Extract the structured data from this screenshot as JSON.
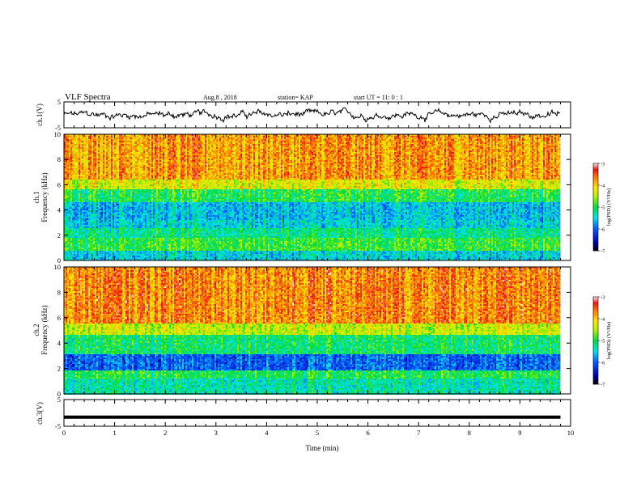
{
  "header": {
    "title": "VLF Spectra",
    "date": "Aug.8  , 2018",
    "station": "station= KAP",
    "start": "start  UT  =   11: 0  : 1"
  },
  "colorbar": {
    "label": "log(PSD) (V²/Hz)",
    "ticks": [
      {
        "value": -3,
        "label": "-3"
      },
      {
        "value": -4,
        "label": "-4"
      },
      {
        "value": -5,
        "label": "-5"
      },
      {
        "value": -6,
        "label": "-6"
      },
      {
        "value": -7,
        "label": "-7"
      }
    ]
  },
  "chart_data": [
    {
      "type": "line",
      "ylabel": "ch.1(V)",
      "ylim": [
        -5,
        5
      ],
      "xlim": [
        0,
        10
      ],
      "yticks": [
        {
          "value": 5,
          "label": "5"
        },
        {
          "value": -5,
          "label": "-5"
        }
      ],
      "description_values": {
        "baseline": 0,
        "typical_range": [
          -2,
          2
        ]
      }
    },
    {
      "type": "heatmap",
      "ylabel_channel": "ch.1",
      "ylabel": "Frequency  (kHz)",
      "ylim": [
        0,
        10
      ],
      "xlim": [
        0,
        9.8
      ],
      "yticks": [
        {
          "value": 0,
          "label": "0"
        },
        {
          "value": 2,
          "label": "2"
        },
        {
          "value": 4,
          "label": "4"
        },
        {
          "value": 6,
          "label": "6"
        },
        {
          "value": 8,
          "label": "8"
        },
        {
          "value": 10,
          "label": "10"
        }
      ],
      "zlim": [
        -7,
        -3
      ],
      "bands": [
        {
          "from": 0,
          "to": 0.8,
          "level": -5.5
        },
        {
          "from": 0.8,
          "to": 1.8,
          "level": -4.9
        },
        {
          "from": 1.8,
          "to": 2.6,
          "level": -5.2
        },
        {
          "from": 2.6,
          "to": 3.2,
          "level": -5.5
        },
        {
          "from": 3.2,
          "to": 4.6,
          "level": -5.6
        },
        {
          "from": 4.6,
          "to": 5.6,
          "level": -5.0
        },
        {
          "from": 5.6,
          "to": 6.4,
          "level": -4.3
        },
        {
          "from": 6.4,
          "to": 10,
          "level": -3.8
        }
      ]
    },
    {
      "type": "heatmap",
      "ylabel_channel": "ch.2",
      "ylabel": "Frequency  (kHz)",
      "ylim": [
        0,
        10
      ],
      "xlim": [
        0,
        9.8
      ],
      "yticks": [
        {
          "value": 0,
          "label": "0"
        },
        {
          "value": 2,
          "label": "2"
        },
        {
          "value": 4,
          "label": "4"
        },
        {
          "value": 6,
          "label": "6"
        },
        {
          "value": 8,
          "label": "8"
        },
        {
          "value": 10,
          "label": "10"
        }
      ],
      "zlim": [
        -7,
        -3
      ],
      "bands": [
        {
          "from": 0,
          "to": 1.2,
          "level": -5.3
        },
        {
          "from": 1.2,
          "to": 1.9,
          "level": -5.0
        },
        {
          "from": 1.9,
          "to": 3.1,
          "level": -6.0
        },
        {
          "from": 3.1,
          "to": 4.6,
          "level": -5.1
        },
        {
          "from": 4.6,
          "to": 5.6,
          "level": -4.4
        },
        {
          "from": 5.6,
          "to": 10,
          "level": -3.7
        }
      ]
    },
    {
      "type": "line",
      "ylabel": "ch.3(V)",
      "ylim": [
        -5,
        5
      ],
      "xlim": [
        0,
        10
      ],
      "xlabel": "Time  (min)",
      "yticks": [
        {
          "value": 5,
          "label": "5"
        },
        {
          "value": -5,
          "label": "-5"
        }
      ],
      "xticks": [
        {
          "value": 0,
          "label": "0"
        },
        {
          "value": 1,
          "label": "1"
        },
        {
          "value": 2,
          "label": "2"
        },
        {
          "value": 3,
          "label": "3"
        },
        {
          "value": 4,
          "label": "4"
        },
        {
          "value": 5,
          "label": "5"
        },
        {
          "value": 6,
          "label": "6"
        },
        {
          "value": 7,
          "label": "7"
        },
        {
          "value": 8,
          "label": "8"
        },
        {
          "value": 9,
          "label": "9"
        },
        {
          "value": 10,
          "label": "10"
        }
      ],
      "constant_value": -1.6
    }
  ]
}
